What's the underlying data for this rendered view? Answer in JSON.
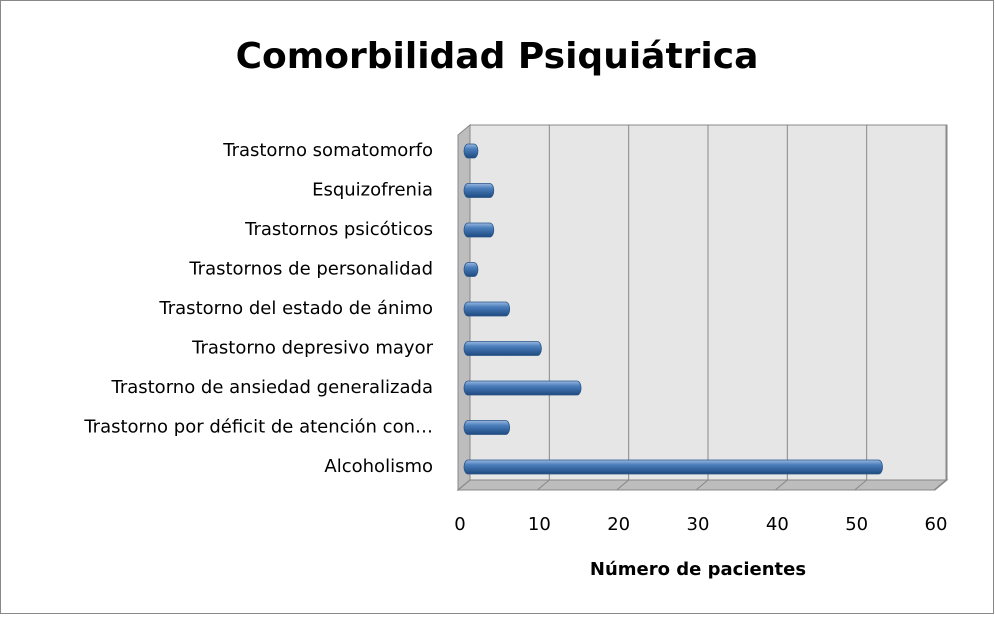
{
  "chart_data": {
    "type": "bar",
    "orientation": "horizontal",
    "title": "Comorbilidad Psiquiátrica",
    "xlabel": "Número de pacientes",
    "categories": [
      "Alcoholismo",
      "Trastorno por déficit de atención con…",
      "Trastorno de ansiedad generalizada",
      "Trastorno depresivo mayor",
      "Trastorno del estado de ánimo",
      "Trastornos de personalidad",
      "Trastornos psicóticos",
      "Esquizofrenia",
      "Trastorno somatomorfo"
    ],
    "values": [
      52,
      5,
      14,
      9,
      5,
      1,
      3,
      3,
      1
    ],
    "color": "#4a7ebb",
    "xlim": [
      0,
      60
    ],
    "xticks": [
      0,
      10,
      20,
      30,
      40,
      50,
      60
    ],
    "grid": true
  }
}
